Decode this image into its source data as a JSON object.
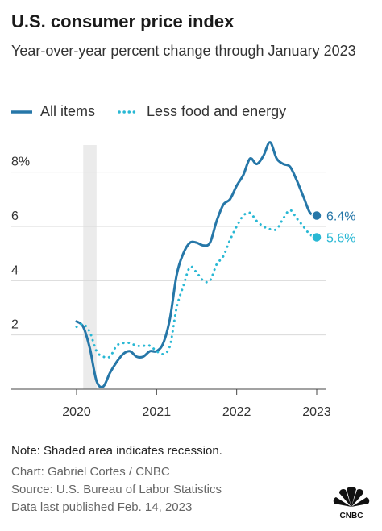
{
  "header": {
    "title": "U.S. consumer price index",
    "subtitle": "Year-over-year percent change through January 2023"
  },
  "legend": {
    "all_items": "All items",
    "core": "Less food and energy"
  },
  "footer": {
    "note": "Note: Shaded area indicates recession.",
    "credit": "Chart: Gabriel Cortes / CNBC",
    "source": "Source: U.S. Bureau of Labor Statistics",
    "published": "Data last published Feb. 14, 2023",
    "logo_text": "CNBC"
  },
  "colors": {
    "all_items": "#2677a8",
    "core": "#29b8d4",
    "recession": "#ebebeb",
    "grid": "#d9d9d9"
  },
  "chart_data": {
    "type": "line",
    "title": "U.S. consumer price index",
    "subtitle": "Year-over-year percent change through January 2023",
    "xlabel": "",
    "ylabel": "",
    "xlim": [
      "2020-01",
      "2023-01"
    ],
    "ylim": [
      0,
      9
    ],
    "y_ticks": [
      2,
      4,
      6,
      8
    ],
    "y_tick_labels": [
      "2",
      "4",
      "6",
      "8%"
    ],
    "x_ticks": [
      "2020-01",
      "2021-01",
      "2022-01",
      "2023-01"
    ],
    "x_tick_labels": [
      "2020",
      "2021",
      "2022",
      "2023"
    ],
    "grid": "horizontal",
    "recession": [
      "2020-02",
      "2020-04"
    ],
    "x": [
      "2020-01",
      "2020-02",
      "2020-03",
      "2020-04",
      "2020-05",
      "2020-06",
      "2020-07",
      "2020-08",
      "2020-09",
      "2020-10",
      "2020-11",
      "2020-12",
      "2021-01",
      "2021-02",
      "2021-03",
      "2021-04",
      "2021-05",
      "2021-06",
      "2021-07",
      "2021-08",
      "2021-09",
      "2021-10",
      "2021-11",
      "2021-12",
      "2022-01",
      "2022-02",
      "2022-03",
      "2022-04",
      "2022-05",
      "2022-06",
      "2022-07",
      "2022-08",
      "2022-09",
      "2022-10",
      "2022-11",
      "2022-12",
      "2023-01"
    ],
    "series": [
      {
        "name": "All items",
        "values": [
          2.5,
          2.3,
          1.5,
          0.3,
          0.1,
          0.6,
          1.0,
          1.3,
          1.4,
          1.2,
          1.2,
          1.4,
          1.4,
          1.7,
          2.6,
          4.2,
          5.0,
          5.4,
          5.4,
          5.3,
          5.4,
          6.2,
          6.8,
          7.0,
          7.5,
          7.9,
          8.5,
          8.3,
          8.6,
          9.1,
          8.5,
          8.3,
          8.2,
          7.7,
          7.1,
          6.5,
          6.4
        ],
        "end_label": "6.4%"
      },
      {
        "name": "Less food and energy",
        "values": [
          2.3,
          2.4,
          2.1,
          1.4,
          1.2,
          1.2,
          1.6,
          1.7,
          1.7,
          1.6,
          1.6,
          1.6,
          1.4,
          1.3,
          1.6,
          3.0,
          3.8,
          4.5,
          4.3,
          4.0,
          4.0,
          4.6,
          4.9,
          5.5,
          6.0,
          6.4,
          6.5,
          6.2,
          6.0,
          5.9,
          5.9,
          6.3,
          6.6,
          6.3,
          6.0,
          5.7,
          5.6
        ],
        "end_label": "5.6%"
      }
    ]
  }
}
